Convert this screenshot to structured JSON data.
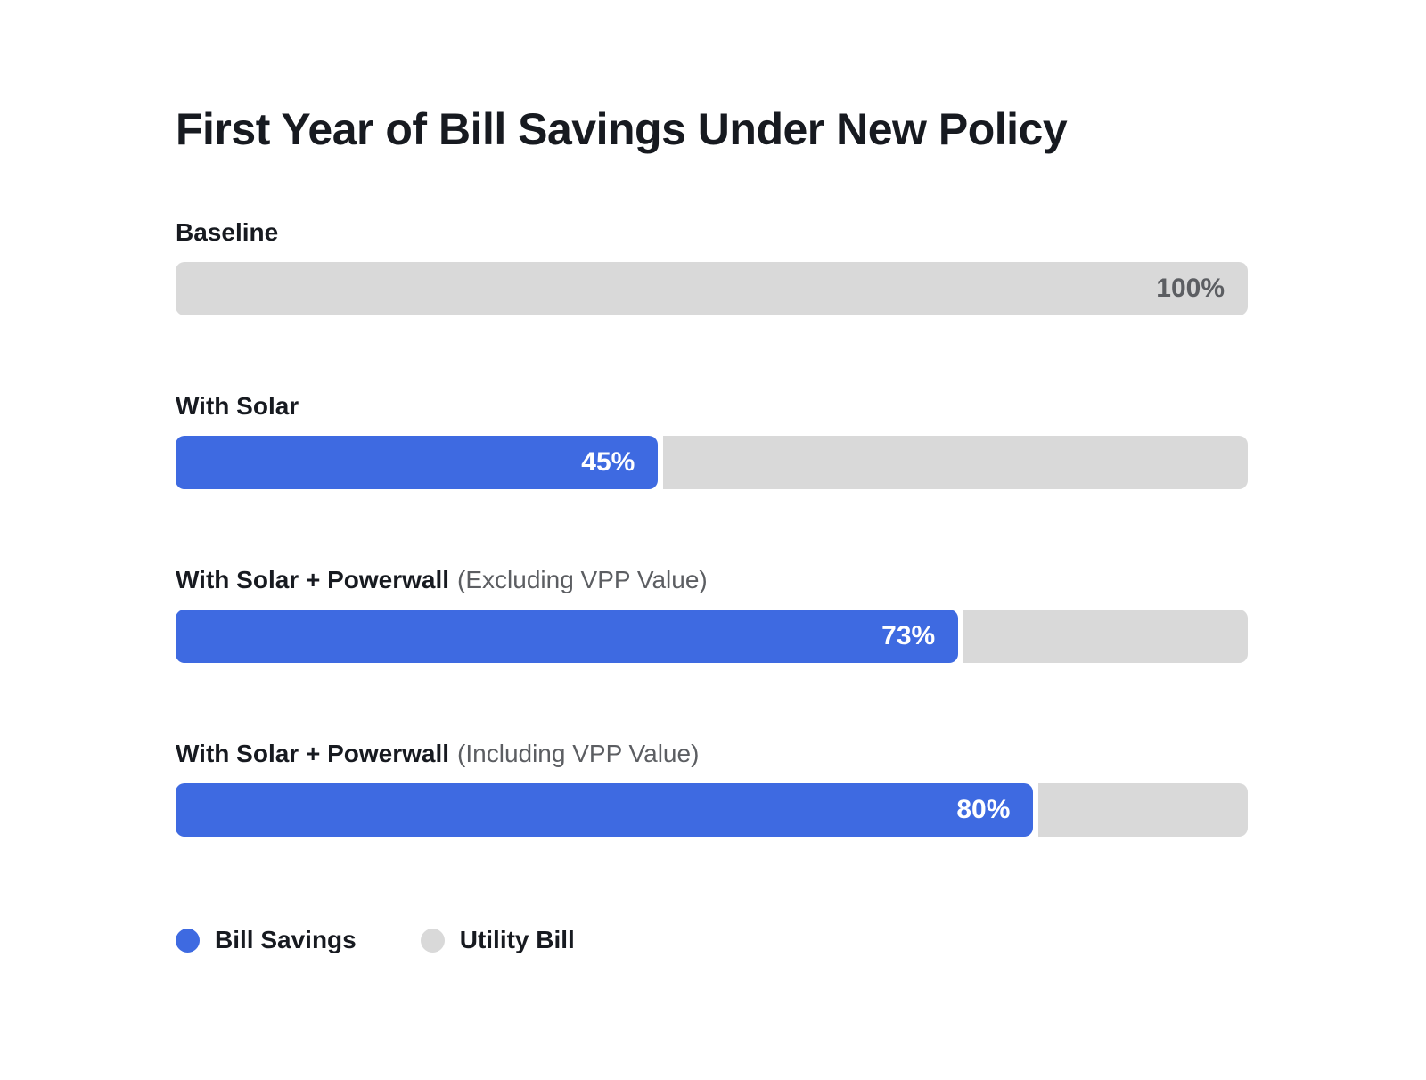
{
  "title": "First Year of Bill Savings Under New Policy",
  "colors": {
    "savings": "#3e6ae1",
    "utility": "#d9d9d9",
    "text_dark": "#171a20",
    "text_gray": "#5c5e62",
    "background": "#ffffff"
  },
  "chart_data": {
    "type": "bar",
    "orientation": "horizontal",
    "title": "First Year of Bill Savings Under New Policy",
    "unit": "%",
    "xlim": [
      0,
      100
    ],
    "grid": false,
    "legend_position": "bottom-left",
    "rows": [
      {
        "label": "Baseline",
        "label_sub": "",
        "value": 100,
        "display": "100%",
        "fill": "utility",
        "series": "Utility Bill"
      },
      {
        "label": "With Solar",
        "label_sub": "",
        "value": 45,
        "display": "45%",
        "fill": "savings",
        "series": "Bill Savings"
      },
      {
        "label": "With Solar + Powerwall",
        "label_sub": "(Excluding VPP Value)",
        "value": 73,
        "display": "73%",
        "fill": "savings",
        "series": "Bill Savings"
      },
      {
        "label": "With Solar + Powerwall",
        "label_sub": "(Including VPP Value)",
        "value": 80,
        "display": "80%",
        "fill": "savings",
        "series": "Bill Savings"
      }
    ],
    "legend": [
      {
        "label": "Bill Savings",
        "color": "#3e6ae1"
      },
      {
        "label": "Utility Bill",
        "color": "#d9d9d9"
      }
    ]
  }
}
